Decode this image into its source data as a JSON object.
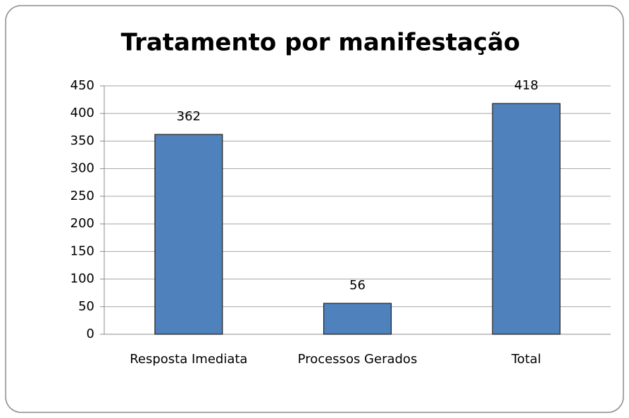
{
  "chart_data": {
    "type": "bar",
    "title": "Tratamento por manifestação",
    "categories": [
      "Resposta Imediata",
      "Processos Gerados",
      "Total"
    ],
    "values": [
      362,
      56,
      418
    ],
    "color": "#4f81bd",
    "ylim": [
      0,
      450
    ],
    "yticks": [
      0,
      50,
      100,
      150,
      200,
      250,
      300,
      350,
      400,
      450
    ],
    "grid": true
  }
}
